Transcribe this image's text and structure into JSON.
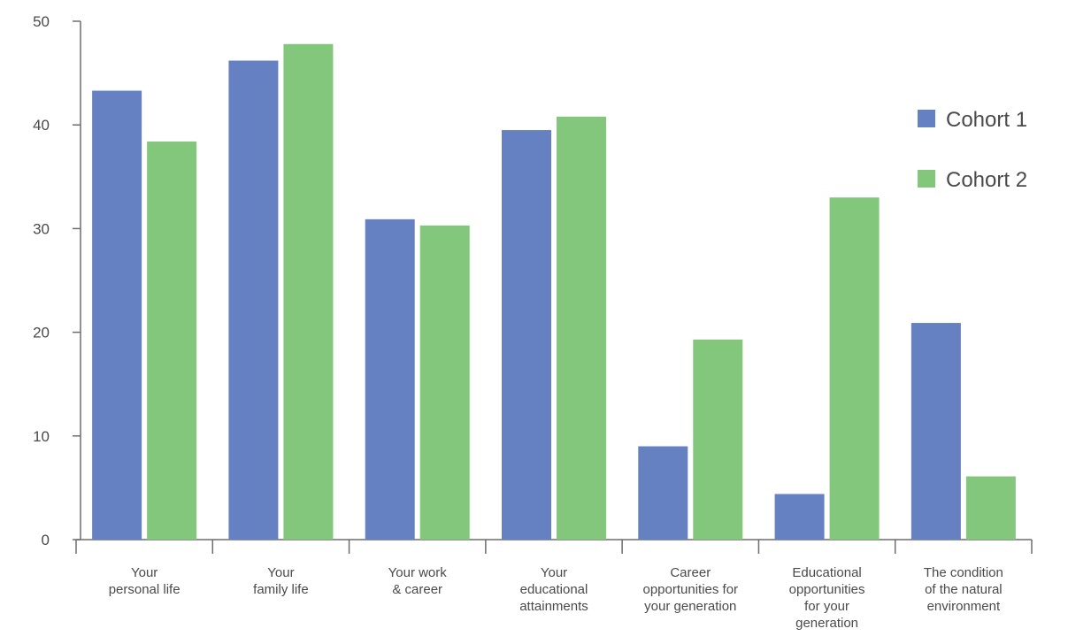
{
  "chart_data": {
    "type": "bar",
    "title": "",
    "xlabel": "",
    "ylabel": "",
    "ylim": [
      0,
      50
    ],
    "yticks": [
      0,
      10,
      20,
      30,
      40,
      50
    ],
    "grid": false,
    "legend_position": "right",
    "categories": [
      [
        "Your",
        "personal life"
      ],
      [
        "Your",
        "family life"
      ],
      [
        "Your work",
        "& career"
      ],
      [
        "Your",
        "educational",
        "attainments"
      ],
      [
        "Career",
        "opportunities for",
        "your generation"
      ],
      [
        "Educational",
        "opportunities",
        "for your",
        "generation"
      ],
      [
        "The condition",
        "of the natural",
        "environment"
      ]
    ],
    "series": [
      {
        "name": "Cohort 1",
        "color": "#6581c2",
        "values": [
          43.3,
          46.2,
          30.9,
          39.5,
          9.0,
          4.4,
          20.9
        ]
      },
      {
        "name": "Cohort 2",
        "color": "#82c77b",
        "values": [
          38.4,
          47.8,
          30.3,
          40.8,
          19.3,
          33.0,
          6.1
        ]
      }
    ]
  }
}
